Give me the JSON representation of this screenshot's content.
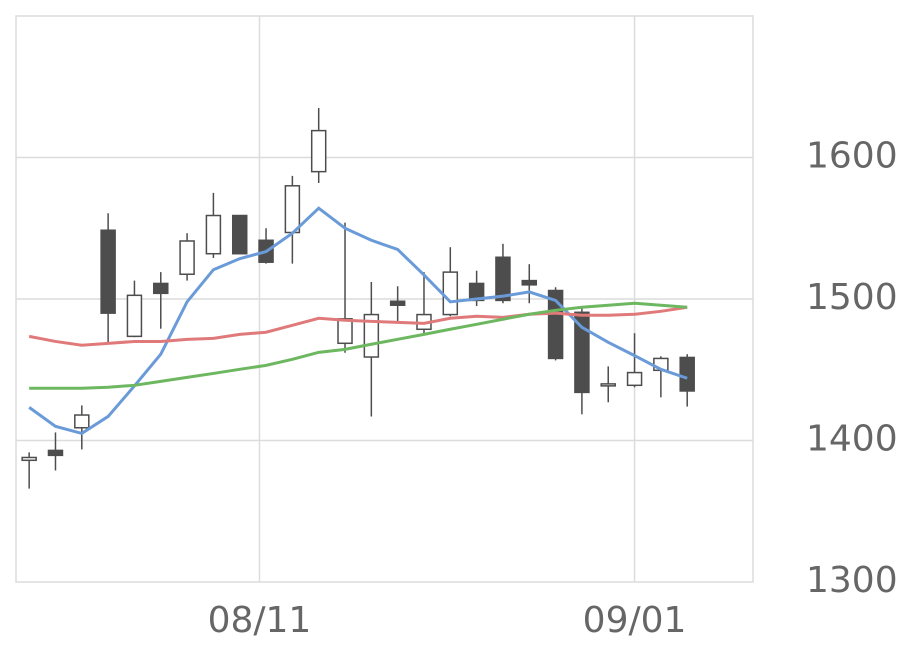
{
  "chart_data": {
    "type": "candlestick",
    "x": [
      0,
      1,
      2,
      3,
      4,
      5,
      6,
      7,
      8,
      9,
      10,
      11,
      12,
      13,
      14,
      15,
      16,
      17,
      18,
      19,
      20,
      21,
      22,
      23,
      24,
      25
    ],
    "open": [
      1386,
      1393,
      1409,
      1548.6,
      1473.6,
      1511,
      1517.5,
      1532,
      1559,
      1541.5,
      1547,
      1590,
      1468.7,
      1459,
      1498.4,
      1478.6,
      1489,
      1511,
      1529.5,
      1513,
      1506,
      1490.6,
      1438.6,
      1439,
      1449.6,
      1458.7
    ],
    "high": [
      1391.6,
      1405.7,
      1424.8,
      1560.6,
      1513,
      1519,
      1546.5,
      1575,
      1559,
      1550,
      1587,
      1635,
      1554,
      1512,
      1509,
      1519,
      1536.6,
      1520,
      1539,
      1524.6,
      1508.3,
      1493.4,
      1452.4,
      1475.8,
      1459.5,
      1461
    ],
    "low": [
      1366,
      1378.8,
      1393.7,
      1469.4,
      1473,
      1479,
      1513,
      1529,
      1532,
      1525,
      1525,
      1582,
      1462,
      1417,
      1483.5,
      1475,
      1487.8,
      1495,
      1497,
      1497,
      1456.6,
      1418.5,
      1427,
      1437.6,
      1430.5,
      1424
    ],
    "close": [
      1388,
      1389.5,
      1418,
      1490,
      1502.6,
      1504,
      1541,
      1559,
      1532,
      1526,
      1580,
      1619,
      1486,
      1489,
      1495.6,
      1489,
      1519,
      1499,
      1499,
      1510,
      1458,
      1434,
      1440,
      1448,
      1458,
      1435
    ],
    "up_color": "#ffffff",
    "down_color": "#4d4d4d",
    "wick_color": "#4d4d4d",
    "series": [
      {
        "color": "#6a9bd8",
        "values": [
          1423.4,
          1410,
          1405,
          1417,
          1438.6,
          1461,
          1498,
          1520.7,
          1528.5,
          1533.5,
          1546.5,
          1564.2,
          1550,
          1541.5,
          1535,
          1517,
          1498,
          1500,
          1502,
          1505,
          1499,
          1480,
          1469.4,
          1460,
          1450.3,
          1444
        ]
      },
      {
        "color": "#e07a7a",
        "values": [
          1473.6,
          1470,
          1467.3,
          1468.6,
          1470,
          1470,
          1471.5,
          1472.2,
          1475,
          1476.5,
          1481.4,
          1486.4,
          1485,
          1484.2,
          1483.5,
          1482.8,
          1486.4,
          1487.8,
          1487,
          1489.2,
          1490,
          1488.5,
          1488.5,
          1489.2,
          1491.3,
          1494.2
        ]
      },
      {
        "color": "#6cb760",
        "values": [
          1436.9,
          1436.9,
          1436.9,
          1437.6,
          1439,
          1441.8,
          1444.6,
          1447.4,
          1450.3,
          1453.1,
          1457.4,
          1462.3,
          1464.4,
          1468,
          1471.5,
          1475,
          1478.6,
          1482.1,
          1485.7,
          1489.2,
          1492,
          1494.2,
          1495.6,
          1497,
          1495.6,
          1494.2
        ]
      }
    ],
    "xlim": [
      -0.5,
      27.5
    ],
    "xticks": [
      {
        "value": 8.75,
        "label": "08/11"
      },
      {
        "value": 23,
        "label": "09/01"
      }
    ],
    "ylim": [
      1300,
      1700
    ],
    "yticks": [
      1300,
      1400,
      1500,
      1600
    ],
    "grid": true
  }
}
